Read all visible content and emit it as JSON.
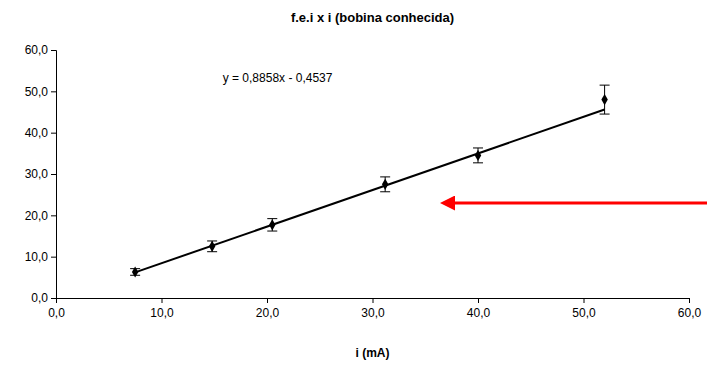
{
  "chart_data": {
    "type": "scatter",
    "title": "f.e.i x i (bobina conhecida)",
    "x_label": "i (mA)",
    "annotation": "y = 0,8858x - 0,4537",
    "xlim": [
      0,
      60
    ],
    "xticks": [
      {
        "value": 0,
        "label": "0,0"
      },
      {
        "value": 10,
        "label": "10,0"
      },
      {
        "value": 20,
        "label": "20,0"
      },
      {
        "value": 30,
        "label": "30,0"
      },
      {
        "value": 40,
        "label": "40,0"
      },
      {
        "value": 50,
        "label": "50,0"
      },
      {
        "value": 60,
        "label": "60,0"
      }
    ],
    "ylim": [
      0,
      60
    ],
    "yticks": [
      {
        "value": 0,
        "label": "0,0"
      },
      {
        "value": 10,
        "label": "10,0"
      },
      {
        "value": 20,
        "label": "20,0"
      },
      {
        "value": 30,
        "label": "30,0"
      },
      {
        "value": 40,
        "label": "40,0"
      },
      {
        "value": 50,
        "label": "50,0"
      },
      {
        "value": 60,
        "label": "60,0"
      }
    ],
    "grid": false,
    "series": [
      {
        "type": "scatter",
        "color": "#000000",
        "marker": "diamond",
        "x": [
          7.5,
          14.8,
          20.5,
          31.2,
          40.0,
          52.0
        ],
        "values": [
          6.3,
          12.5,
          17.7,
          27.5,
          34.5,
          48.0
        ],
        "errors": [
          0.8,
          1.3,
          1.5,
          1.8,
          1.8,
          3.5
        ]
      },
      {
        "type": "line",
        "color": "#000000",
        "line_style": "solid",
        "x": [
          7.5,
          52.0
        ],
        "values": [
          6.2,
          45.6
        ]
      }
    ]
  }
}
